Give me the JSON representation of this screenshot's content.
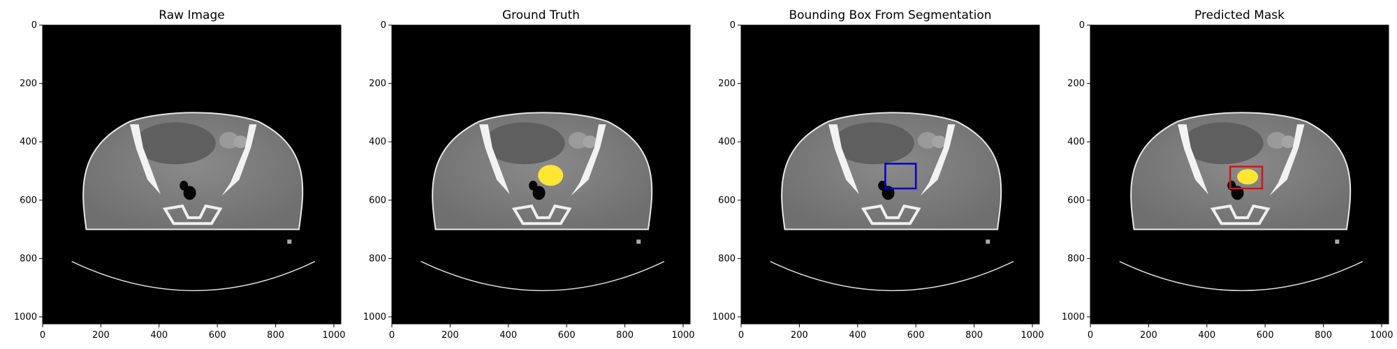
{
  "figure": {
    "panels": [
      {
        "title": "Raw Image",
        "overlay": "none"
      },
      {
        "title": "Ground Truth",
        "overlay": "mask"
      },
      {
        "title": "Bounding Box From Segmentation",
        "overlay": "box"
      },
      {
        "title": "Predicted Mask",
        "overlay": "mask-box"
      }
    ],
    "axes": {
      "x_ticks": [
        "0",
        "200",
        "400",
        "600",
        "800",
        "1000"
      ],
      "y_ticks": [
        "0",
        "200",
        "400",
        "600",
        "800",
        "1000"
      ],
      "xlim": [
        0,
        1024
      ],
      "ylim": [
        1024,
        0
      ]
    },
    "annotation": {
      "mask_color": "#ffe633",
      "gt_box_color": "#0000cc",
      "pred_box_color": "#dd1111",
      "gt_box": [
        495,
        475,
        600,
        560
      ],
      "pred_box": [
        480,
        485,
        590,
        560
      ]
    }
  }
}
